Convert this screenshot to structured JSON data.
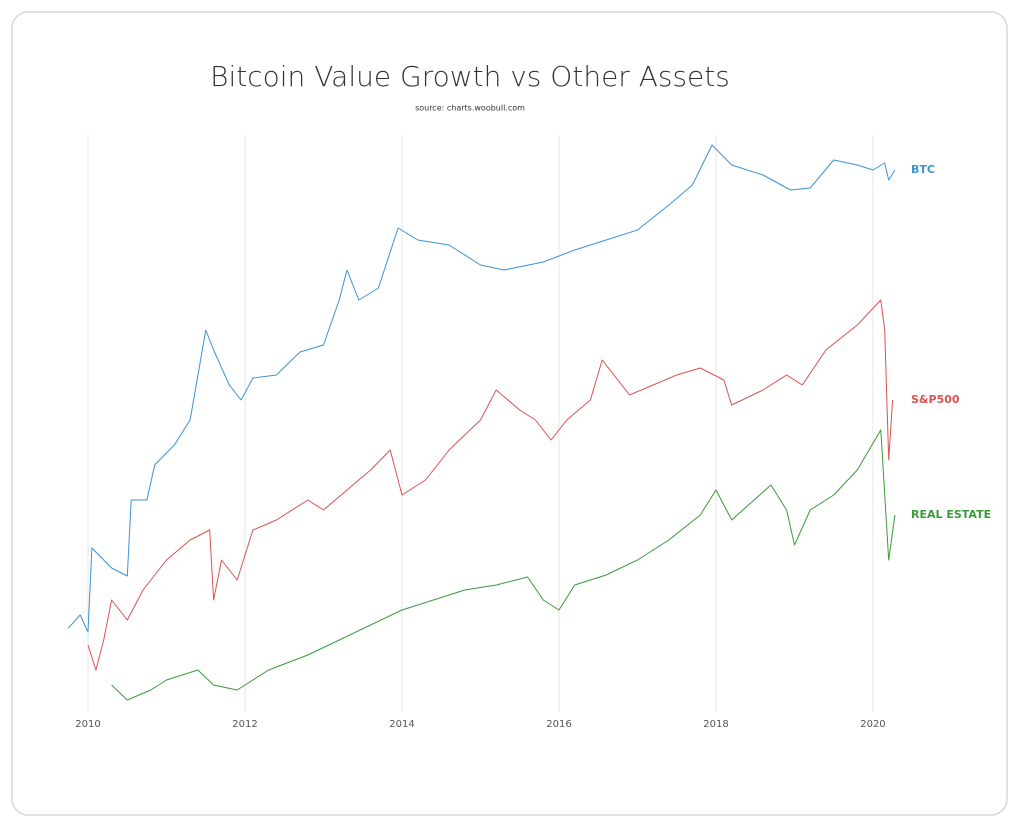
{
  "chart_data": {
    "type": "line",
    "title": "Bitcoin Value Growth vs Other Assets",
    "subtitle": "source: charts.woobull.com",
    "xlim": [
      2009.75,
      2020.3
    ],
    "xticks": [
      2010,
      2012,
      2014,
      2016,
      2018,
      2020
    ],
    "ylim": [
      0,
      570
    ],
    "grid": true,
    "series": [
      {
        "name": "BTC",
        "color": "#3a93d6",
        "x": [
          2009.75,
          2009.9,
          2010.0,
          2010.05,
          2010.3,
          2010.5,
          2010.55,
          2010.75,
          2010.85,
          2011.1,
          2011.3,
          2011.5,
          2011.6,
          2011.8,
          2011.95,
          2012.1,
          2012.4,
          2012.7,
          2013.0,
          2013.2,
          2013.3,
          2013.45,
          2013.7,
          2013.95,
          2014.2,
          2014.6,
          2015.0,
          2015.3,
          2015.8,
          2016.2,
          2016.6,
          2017.0,
          2017.4,
          2017.7,
          2017.95,
          2018.2,
          2018.6,
          2018.95,
          2019.2,
          2019.5,
          2019.8,
          2020.0,
          2020.15,
          2020.2,
          2020.28
        ],
        "values": [
          82,
          95,
          78,
          162,
          142,
          134,
          210,
          210,
          245,
          265,
          290,
          380,
          360,
          325,
          310,
          332,
          335,
          358,
          365,
          410,
          440,
          410,
          422,
          482,
          470,
          465,
          445,
          440,
          448,
          460,
          470,
          480,
          505,
          525,
          565,
          545,
          535,
          520,
          522,
          550,
          545,
          540,
          547,
          530,
          540
        ]
      },
      {
        "name": "S&P500",
        "color": "#d9534f",
        "x": [
          2010.0,
          2010.1,
          2010.2,
          2010.3,
          2010.5,
          2010.7,
          2011.0,
          2011.3,
          2011.55,
          2011.6,
          2011.7,
          2011.9,
          2012.1,
          2012.4,
          2012.8,
          2013.0,
          2013.3,
          2013.6,
          2013.85,
          2014.0,
          2014.3,
          2014.6,
          2015.0,
          2015.2,
          2015.5,
          2015.7,
          2015.9,
          2016.1,
          2016.4,
          2016.55,
          2016.9,
          2017.2,
          2017.5,
          2017.8,
          2018.1,
          2018.2,
          2018.6,
          2018.9,
          2019.1,
          2019.4,
          2019.8,
          2020.1,
          2020.15,
          2020.2,
          2020.25
        ],
        "values": [
          65,
          40,
          70,
          110,
          90,
          120,
          150,
          170,
          180,
          110,
          150,
          130,
          180,
          190,
          210,
          200,
          220,
          240,
          260,
          215,
          230,
          260,
          290,
          320,
          300,
          290,
          270,
          290,
          310,
          350,
          315,
          325,
          335,
          342,
          330,
          305,
          320,
          335,
          325,
          360,
          385,
          410,
          380,
          250,
          310
        ]
      },
      {
        "name": "REAL ESTATE",
        "color": "#3a9b3a",
        "x": [
          2010.3,
          2010.5,
          2010.8,
          2011.0,
          2011.4,
          2011.6,
          2011.9,
          2012.3,
          2012.8,
          2013.2,
          2013.6,
          2014.0,
          2014.4,
          2014.8,
          2015.2,
          2015.6,
          2015.8,
          2016.0,
          2016.2,
          2016.6,
          2017.0,
          2017.4,
          2017.8,
          2018.0,
          2018.2,
          2018.7,
          2018.9,
          2019.0,
          2019.2,
          2019.5,
          2019.8,
          2020.1,
          2020.2,
          2020.28
        ],
        "values": [
          25,
          10,
          20,
          30,
          40,
          25,
          20,
          40,
          55,
          70,
          85,
          100,
          110,
          120,
          125,
          133,
          110,
          100,
          125,
          135,
          150,
          170,
          195,
          220,
          190,
          225,
          200,
          165,
          200,
          215,
          240,
          280,
          150,
          195
        ]
      }
    ]
  }
}
